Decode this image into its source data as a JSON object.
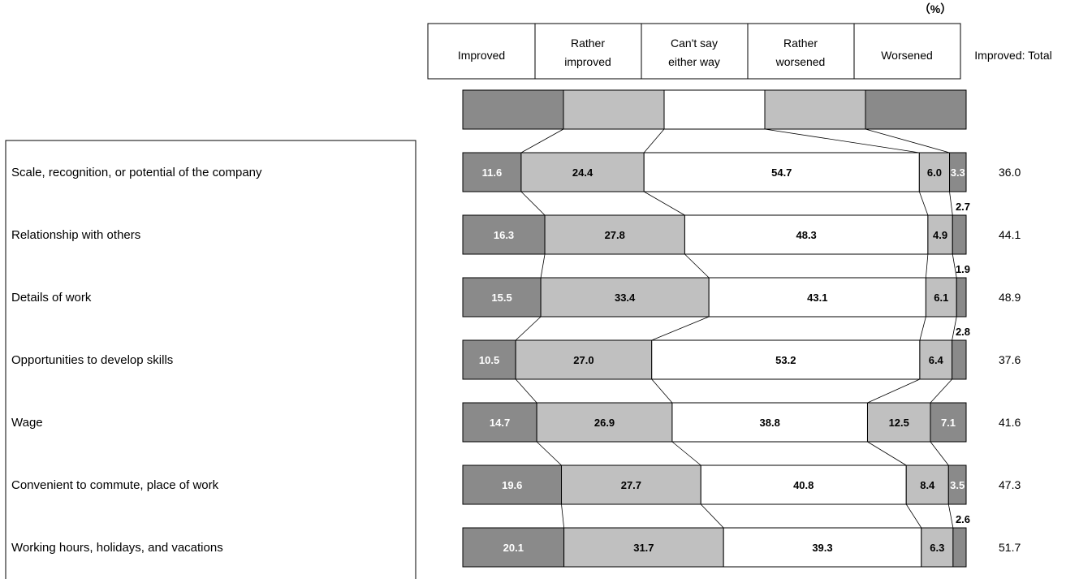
{
  "unit_label": "（%）",
  "total_column_header": "Improved: Total",
  "chart_data": {
    "type": "bar",
    "stacked": true,
    "orientation": "horizontal",
    "xlim": [
      0,
      100
    ],
    "series_names": [
      "Improved",
      "Rather improved",
      "Can't say either way",
      "Rather worsened",
      "Worsened"
    ],
    "series_colors": [
      "#8a8a8a",
      "#c0c0c0",
      "#ffffff",
      "#c0c0c0",
      "#8a8a8a"
    ],
    "categories": [
      "Scale, recognition, or potential of the company",
      "Relationship with others",
      "Details of work",
      "Opportunities to develop skills",
      "Wage",
      "Convenient to commute, place of work",
      "Working hours, holidays, and vacations"
    ],
    "rows": [
      {
        "values": [
          11.6,
          24.4,
          54.7,
          6.0,
          3.3
        ],
        "labels": [
          "11.6",
          "24.4",
          "54.7",
          "6.0",
          "3.3"
        ],
        "total": "36.0"
      },
      {
        "values": [
          16.3,
          27.8,
          48.3,
          4.9,
          2.7
        ],
        "labels": [
          "16.3",
          "27.8",
          "48.3",
          "4.9",
          "2.7"
        ],
        "total": "44.1"
      },
      {
        "values": [
          15.5,
          33.4,
          43.1,
          6.1,
          1.9
        ],
        "labels": [
          "15.5",
          "33.4",
          "43.1",
          "6.1",
          "1.9"
        ],
        "total": "48.9"
      },
      {
        "values": [
          10.5,
          27.0,
          53.2,
          6.4,
          2.8
        ],
        "labels": [
          "10.5",
          "27.0",
          "53.2",
          "6.4",
          "2.8"
        ],
        "total": "37.6"
      },
      {
        "values": [
          14.7,
          26.9,
          38.8,
          12.5,
          7.1
        ],
        "labels": [
          "14.7",
          "26.9",
          "38.8",
          "12.5",
          "7.1"
        ],
        "total": "41.6"
      },
      {
        "values": [
          19.6,
          27.7,
          40.8,
          8.4,
          3.5
        ],
        "labels": [
          "19.6",
          "27.7",
          "40.8",
          "8.4",
          "3.5"
        ],
        "total": "47.3"
      },
      {
        "values": [
          20.1,
          31.7,
          39.3,
          6.3,
          2.6
        ],
        "labels": [
          "20.1",
          "31.7",
          "39.3",
          "6.3",
          "2.6"
        ],
        "total": "51.7"
      }
    ],
    "legend_key_values": [
      20,
      20,
      20,
      20,
      20
    ]
  },
  "legend": {
    "improved": "Improved",
    "rather_improved_1": "Rather",
    "rather_improved_2": "improved",
    "cant_say_1": "Can't say",
    "cant_say_2": "either way",
    "rather_worsened_1": "Rather",
    "rather_worsened_2": "worsened",
    "worsened": "Worsened"
  }
}
